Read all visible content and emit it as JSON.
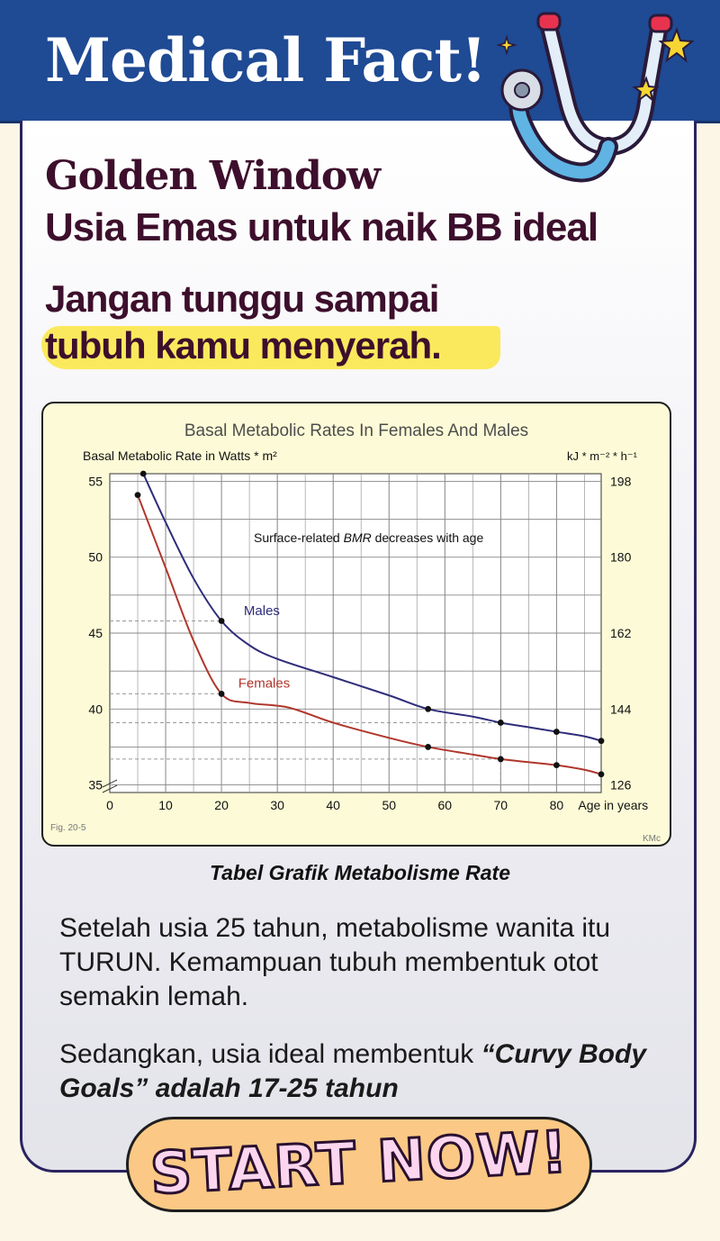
{
  "header": {
    "title": "Medical Fact!"
  },
  "headline": {
    "line1": "Golden Window",
    "line2": "Usia Emas untuk naik BB ideal",
    "tag_line1": "Jangan tunggu sampai",
    "tag_line2": "tubuh kamu menyerah."
  },
  "chart_caption": "Tabel Grafik Metabolisme Rate",
  "chart_data": {
    "type": "line",
    "title": "Basal Metabolic Rates In Females And Males",
    "ylabel": "Basal Metabolic Rate in Watts * m²",
    "ylabel_right": "kJ * m⁻² * h⁻¹",
    "xlabel": "Age in years",
    "xlim": [
      0,
      88
    ],
    "ylim": [
      34.5,
      55.5
    ],
    "x_ticks": [
      0,
      10,
      20,
      30,
      40,
      50,
      60,
      70,
      80
    ],
    "y_ticks": [
      35,
      40,
      45,
      50,
      55
    ],
    "y_ticks_right": [
      {
        "label": "198",
        "at": 55
      },
      {
        "label": "180",
        "at": 50
      },
      {
        "label": "162",
        "at": 45
      },
      {
        "label": "144",
        "at": 40
      },
      {
        "label": "126",
        "at": 35
      }
    ],
    "annotation": {
      "prefix": "Surface-related ",
      "italic": "BMR",
      "suffix": " decreases with age"
    },
    "grid": true,
    "series": [
      {
        "name": "Males",
        "color": "#2f2d7a",
        "x": [
          6,
          10,
          15,
          20,
          25,
          30,
          40,
          50,
          57,
          65,
          70,
          75,
          80,
          85,
          88
        ],
        "y": [
          55.5,
          52.3,
          48.6,
          45.8,
          44.2,
          43.3,
          42.1,
          40.9,
          40.0,
          39.5,
          39.1,
          38.8,
          38.5,
          38.2,
          37.9
        ],
        "markers": [
          [
            6,
            55.5
          ],
          [
            20,
            45.8
          ],
          [
            57,
            40.0
          ],
          [
            70,
            39.1
          ],
          [
            80,
            38.5
          ],
          [
            88,
            37.9
          ]
        ],
        "label_at": [
          24,
          46.2
        ]
      },
      {
        "name": "Females",
        "color": "#b0362c",
        "x": [
          5,
          10,
          15,
          20,
          25,
          32,
          40,
          50,
          57,
          65,
          70,
          75,
          80,
          85,
          88
        ],
        "y": [
          54.1,
          49.3,
          44.5,
          41.0,
          40.4,
          40.1,
          39.1,
          38.1,
          37.5,
          37.0,
          36.7,
          36.5,
          36.3,
          36.0,
          35.7
        ],
        "markers": [
          [
            5,
            54.1
          ],
          [
            20,
            41.0
          ],
          [
            57,
            37.5
          ],
          [
            70,
            36.7
          ],
          [
            80,
            36.3
          ],
          [
            88,
            35.7
          ]
        ],
        "label_at": [
          23,
          41.4
        ]
      }
    ],
    "reference_lines": [
      {
        "age": 20,
        "y": 45.8
      },
      {
        "age": 20,
        "y": 41.0
      },
      {
        "age": 70,
        "y": 39.1
      },
      {
        "age": 70,
        "y": 36.7
      }
    ],
    "footnote_left": "Fig. 20-5",
    "footnote_right": "KMc"
  },
  "body": {
    "para1": "Setelah usia 25 tahun, metabolisme wanita itu TURUN. Kemampuan tubuh membentuk otot semakin lemah.",
    "para2_plain": "Sedangkan, usia ideal membentuk ",
    "para2_bold": "“Curvy Body Goals” adalah 17-25 tahun"
  },
  "cta": {
    "label": "START NOW!"
  }
}
